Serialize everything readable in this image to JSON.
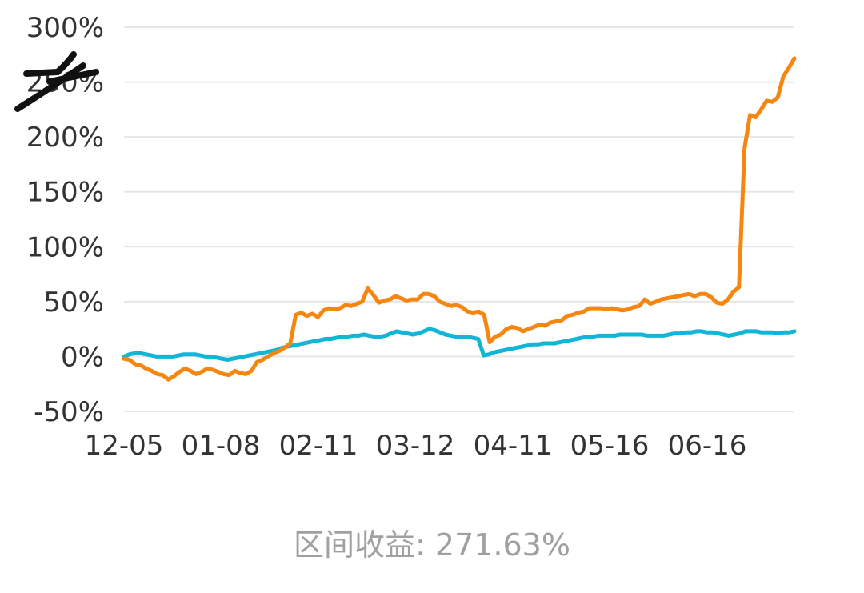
{
  "chart_data": {
    "type": "line",
    "yticks": [
      "300%",
      "250%",
      "200%",
      "150%",
      "100%",
      "50%",
      "0%",
      "-50%"
    ],
    "ytick_values": [
      300,
      250,
      200,
      150,
      100,
      50,
      0,
      -50
    ],
    "xticks": [
      "12-05",
      "01-08",
      "02-11",
      "03-12",
      "04-11",
      "05-16",
      "06-16"
    ],
    "ylim": [
      -50,
      300
    ],
    "grid": true,
    "series": [
      {
        "color": "#F5860F",
        "values": [
          -2,
          -3,
          -7,
          -8,
          -11,
          -13,
          -16,
          -17,
          -21,
          -18,
          -14,
          -11,
          -13,
          -16,
          -14,
          -11,
          -12,
          -14,
          -16,
          -17,
          -13,
          -15,
          -16,
          -13,
          -5,
          -3,
          0,
          3,
          5,
          8,
          12,
          38,
          40,
          37,
          39,
          36,
          42,
          44,
          43,
          44,
          47,
          46,
          48,
          50,
          62,
          56,
          49,
          51,
          52,
          55,
          53,
          51,
          52,
          52,
          57,
          57,
          55,
          50,
          48,
          46,
          47,
          45,
          41,
          40,
          41,
          38,
          13,
          18,
          20,
          25,
          27,
          26,
          23,
          25,
          27,
          29,
          28,
          31,
          32,
          33,
          37,
          38,
          40,
          41,
          44,
          44,
          44,
          43,
          44,
          43,
          42,
          43,
          45,
          46,
          52,
          48,
          50,
          52,
          53,
          54,
          55,
          56,
          57,
          55,
          57,
          57,
          54,
          49,
          48,
          52,
          59,
          63,
          190,
          220,
          218,
          225,
          233,
          232,
          236,
          255,
          263,
          271.63
        ]
      },
      {
        "color": "#11B5D6",
        "values": [
          0,
          2,
          3,
          3,
          2,
          1,
          0,
          0,
          0,
          0,
          1,
          2,
          2,
          2,
          1,
          0,
          0,
          -1,
          -2,
          -3,
          -2,
          -1,
          0,
          1,
          2,
          3,
          4,
          5,
          6,
          8,
          9,
          10,
          11,
          12,
          13,
          14,
          15,
          16,
          16,
          17,
          18,
          18,
          19,
          19,
          20,
          19,
          18,
          18,
          19,
          21,
          23,
          22,
          21,
          20,
          21,
          23,
          25,
          24,
          22,
          20,
          19,
          18,
          18,
          18,
          17,
          16,
          1,
          2,
          4,
          5,
          6,
          7,
          8,
          9,
          10,
          11,
          11,
          12,
          12,
          12,
          13,
          14,
          15,
          16,
          17,
          18,
          18,
          19,
          19,
          19,
          19,
          20,
          20,
          20,
          20,
          20,
          19,
          19,
          19,
          19,
          20,
          21,
          21,
          22,
          22,
          23,
          23,
          22,
          22,
          21,
          20,
          19,
          20,
          21,
          23,
          23,
          23,
          22,
          22,
          22,
          21,
          22,
          22,
          23
        ]
      }
    ]
  },
  "summary": "区间收益: 271.63%"
}
